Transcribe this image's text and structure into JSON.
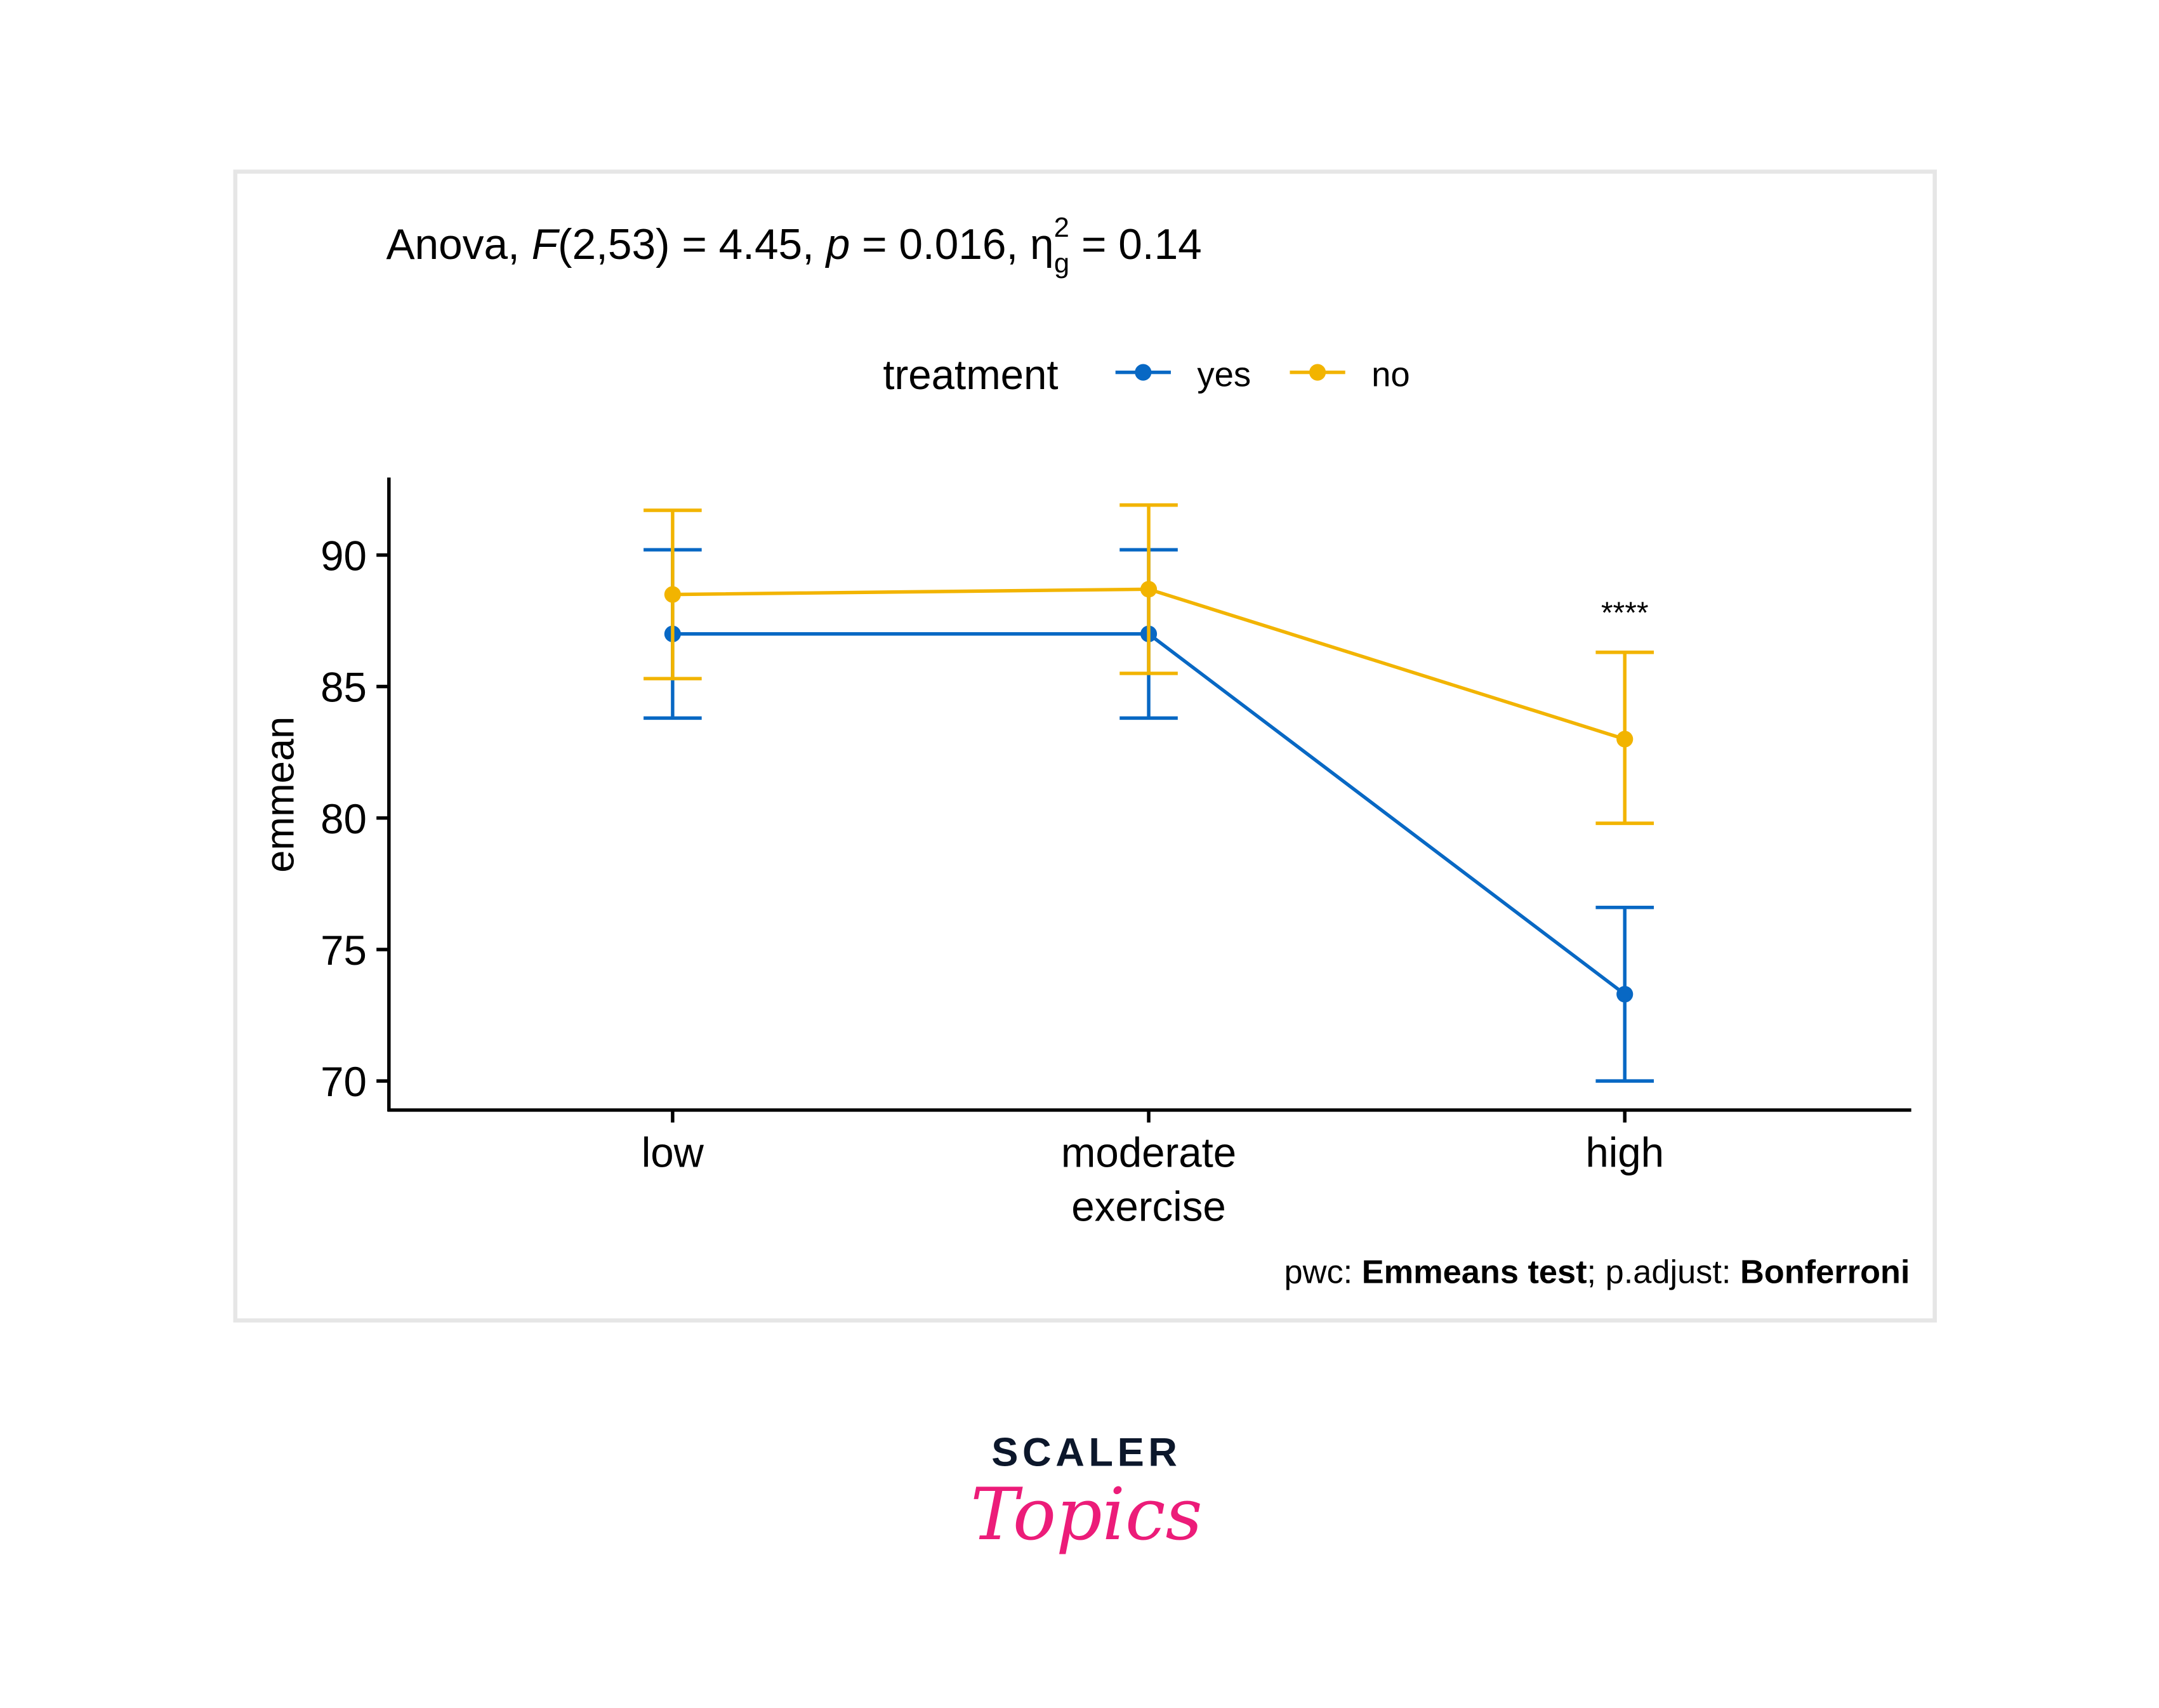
{
  "chart_data": {
    "type": "line",
    "title": {
      "prefix": "Anova, ",
      "F": "F",
      "F_args": "(2,53) = 4.45, ",
      "p": "p",
      "p_rest": " = 0.016, ",
      "eta": "η",
      "eta_sup": "2",
      "eta_sub": "g",
      "eta_rest": " = 0.14"
    },
    "legend": {
      "title": "treatment",
      "placement": "top"
    },
    "xlabel": "exercise",
    "ylabel": "emmean",
    "categories": [
      "low",
      "moderate",
      "high"
    ],
    "yticks": [
      70,
      75,
      80,
      85,
      90
    ],
    "ylim": [
      68.9,
      93
    ],
    "series": [
      {
        "name": "yes",
        "color": "#0868C4",
        "values": [
          87.0,
          87.0,
          73.3
        ],
        "lower": [
          83.8,
          83.8,
          70.0
        ],
        "upper": [
          90.2,
          90.2,
          76.6
        ]
      },
      {
        "name": "no",
        "color": "#F2B400",
        "values": [
          88.5,
          88.7,
          83.0
        ],
        "lower": [
          85.3,
          85.5,
          79.8
        ],
        "upper": [
          91.7,
          91.9,
          86.3
        ]
      }
    ],
    "annotations": [
      {
        "category": "high",
        "label": "****"
      }
    ],
    "caption": {
      "pwc_label": "pwc: ",
      "pwc_value": "Emmeans test",
      "sep": "; p.adjust: ",
      "adjust_value": "Bonferroni"
    }
  },
  "logo": {
    "line1": "SCALER",
    "line2": "Topics",
    "color1": "#0C172B",
    "color2": "#EC1C79"
  }
}
